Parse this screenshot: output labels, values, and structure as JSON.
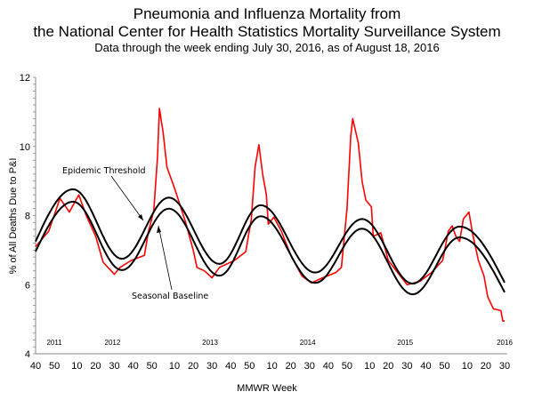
{
  "chart_data": {
    "type": "line",
    "title_line1": "Pneumonia and Influenza Mortality from",
    "title_line2": "the National Center for Health Statistics Mortality Surveillance System",
    "subtitle": "Data through the week ending July 30, 2016, as of August 18, 2016",
    "xlabel": "MMWR Week",
    "ylabel": "% of All Deaths Due to P&I",
    "ylim": [
      4,
      12
    ],
    "yticks": [
      "4",
      "6",
      "8",
      "10",
      "12"
    ],
    "xlim": [
      "2011-40",
      "2016-30"
    ],
    "xticks": [
      {
        "x": "2011-40",
        "label": "40"
      },
      {
        "x": "2011-50",
        "label": "50"
      },
      {
        "x": "2012-10",
        "label": "10"
      },
      {
        "x": "2012-20",
        "label": "20"
      },
      {
        "x": "2012-30",
        "label": "30"
      },
      {
        "x": "2012-40",
        "label": "40"
      },
      {
        "x": "2012-50",
        "label": "50"
      },
      {
        "x": "2013-10",
        "label": "10"
      },
      {
        "x": "2013-20",
        "label": "20"
      },
      {
        "x": "2013-30",
        "label": "30"
      },
      {
        "x": "2013-40",
        "label": "40"
      },
      {
        "x": "2013-50",
        "label": "50"
      },
      {
        "x": "2014-10",
        "label": "10"
      },
      {
        "x": "2014-20",
        "label": "20"
      },
      {
        "x": "2014-30",
        "label": "30"
      },
      {
        "x": "2014-40",
        "label": "40"
      },
      {
        "x": "2014-50",
        "label": "50"
      },
      {
        "x": "2015-10",
        "label": "10"
      },
      {
        "x": "2015-20",
        "label": "20"
      },
      {
        "x": "2015-30",
        "label": "30"
      },
      {
        "x": "2015-40",
        "label": "40"
      },
      {
        "x": "2015-50",
        "label": "50"
      },
      {
        "x": "2016-10",
        "label": "10"
      },
      {
        "x": "2016-20",
        "label": "20"
      },
      {
        "x": "2016-30",
        "label": "30"
      }
    ],
    "year_labels": [
      {
        "x": "2011-50",
        "label": "2011"
      },
      {
        "x": "2012-29",
        "label": "2012"
      },
      {
        "x": "2013-29",
        "label": "2013"
      },
      {
        "x": "2014-29",
        "label": "2014"
      },
      {
        "x": "2015-29",
        "label": "2015"
      },
      {
        "x": "2016-30",
        "label": "2016"
      }
    ],
    "annotations": {
      "threshold": "Epidemic Threshold",
      "baseline": "Seasonal Baseline"
    },
    "colors": {
      "observed": "#ff0000",
      "baseline": "#000000",
      "threshold": "#000000"
    },
    "series": [
      {
        "key": "observed",
        "points": [
          [
            "2011-40",
            7.1
          ],
          [
            "2011-47",
            7.55
          ],
          [
            "2012-01",
            8.5
          ],
          [
            "2012-06",
            8.1
          ],
          [
            "2012-11",
            8.6
          ],
          [
            "2012-15",
            8.0
          ],
          [
            "2012-20",
            7.4
          ],
          [
            "2012-24",
            6.65
          ],
          [
            "2012-30",
            6.3
          ],
          [
            "2012-33",
            6.5
          ],
          [
            "2012-39",
            6.7
          ],
          [
            "2012-46",
            6.85
          ],
          [
            "2012-48",
            7.5
          ],
          [
            "2012-51",
            8.15
          ],
          [
            "2013-01",
            9.7
          ],
          [
            "2013-02",
            11.1
          ],
          [
            "2013-04",
            10.4
          ],
          [
            "2013-06",
            9.4
          ],
          [
            "2013-10",
            8.8
          ],
          [
            "2013-13",
            8.3
          ],
          [
            "2013-16",
            7.8
          ],
          [
            "2013-20",
            7.0
          ],
          [
            "2013-22",
            6.5
          ],
          [
            "2013-26",
            6.4
          ],
          [
            "2013-30",
            6.2
          ],
          [
            "2013-34",
            6.5
          ],
          [
            "2013-42",
            6.7
          ],
          [
            "2013-48",
            6.95
          ],
          [
            "2013-51",
            7.9
          ],
          [
            "2014-01",
            9.4
          ],
          [
            "2014-03",
            10.05
          ],
          [
            "2014-05",
            9.2
          ],
          [
            "2014-07",
            8.6
          ],
          [
            "2014-08",
            7.75
          ],
          [
            "2014-11",
            7.95
          ],
          [
            "2014-15",
            7.55
          ],
          [
            "2014-20",
            6.85
          ],
          [
            "2014-26",
            6.25
          ],
          [
            "2014-31",
            6.05
          ],
          [
            "2014-37",
            6.2
          ],
          [
            "2014-44",
            6.35
          ],
          [
            "2014-47",
            6.5
          ],
          [
            "2014-50",
            8.2
          ],
          [
            "2014-52",
            10.3
          ],
          [
            "2015-01",
            10.8
          ],
          [
            "2015-04",
            10.1
          ],
          [
            "2015-06",
            9.0
          ],
          [
            "2015-08",
            8.45
          ],
          [
            "2015-11",
            8.25
          ],
          [
            "2015-12",
            7.4
          ],
          [
            "2015-16",
            7.5
          ],
          [
            "2015-20",
            6.7
          ],
          [
            "2015-25",
            6.35
          ],
          [
            "2015-30",
            6.0
          ],
          [
            "2015-37",
            6.1
          ],
          [
            "2015-43",
            6.35
          ],
          [
            "2015-49",
            6.7
          ],
          [
            "2015-52",
            7.55
          ],
          [
            "2016-02",
            7.7
          ],
          [
            "2016-04",
            7.4
          ],
          [
            "2016-06",
            7.25
          ],
          [
            "2016-08",
            7.9
          ],
          [
            "2016-11",
            8.1
          ],
          [
            "2016-13",
            7.45
          ],
          [
            "2016-16",
            6.7
          ],
          [
            "2016-19",
            6.25
          ],
          [
            "2016-21",
            5.65
          ],
          [
            "2016-24",
            5.3
          ],
          [
            "2016-28",
            5.25
          ],
          [
            "2016-29",
            4.95
          ],
          [
            "2016-30",
            4.95
          ]
        ]
      },
      {
        "key": "baseline",
        "points": [
          [
            "2011-40",
            6.96
          ],
          [
            "2012-08",
            8.4
          ],
          [
            "2012-34",
            6.42
          ],
          [
            "2013-07",
            8.2
          ],
          [
            "2013-34",
            6.26
          ],
          [
            "2014-04",
            7.98
          ],
          [
            "2014-33",
            6.05
          ],
          [
            "2015-06",
            7.62
          ],
          [
            "2015-33",
            5.72
          ],
          [
            "2016-06",
            7.37
          ],
          [
            "2016-30",
            5.78
          ]
        ]
      },
      {
        "key": "threshold",
        "points": [
          [
            "2011-40",
            7.25
          ],
          [
            "2012-08",
            8.76
          ],
          [
            "2012-34",
            6.75
          ],
          [
            "2013-07",
            8.52
          ],
          [
            "2013-34",
            6.6
          ],
          [
            "2014-04",
            8.3
          ],
          [
            "2014-33",
            6.35
          ],
          [
            "2015-06",
            7.9
          ],
          [
            "2015-33",
            6.03
          ],
          [
            "2016-06",
            7.68
          ],
          [
            "2016-30",
            6.06
          ]
        ]
      }
    ]
  }
}
